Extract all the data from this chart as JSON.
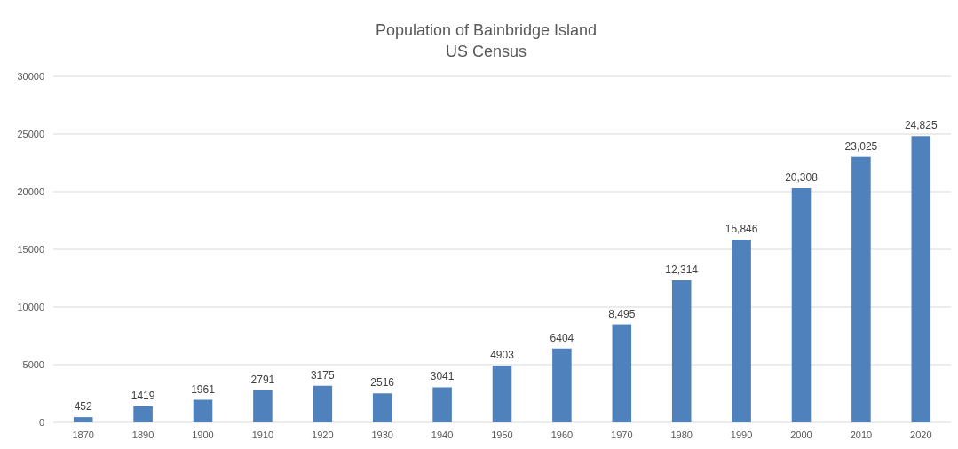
{
  "chart_data": {
    "type": "bar",
    "title": "Population of Bainbridge Island",
    "subtitle": "US Census",
    "categories": [
      "1870",
      "1890",
      "1900",
      "1910",
      "1920",
      "1930",
      "1940",
      "1950",
      "1960",
      "1970",
      "1980",
      "1990",
      "2000",
      "2010",
      "2020"
    ],
    "values": [
      452,
      1419,
      1961,
      2791,
      3175,
      2516,
      3041,
      4903,
      6404,
      8495,
      12314,
      15846,
      20308,
      23025,
      24825
    ],
    "value_labels": [
      "452",
      "1419",
      "1961",
      "2791",
      "3175",
      "2516",
      "3041",
      "4903",
      "6404",
      "8,495",
      "12,314",
      "15,846",
      "20,308",
      "23,025",
      "24,825"
    ],
    "color": "#4f81bd",
    "ylim": [
      0,
      30000
    ],
    "yticks": [
      0,
      5000,
      10000,
      15000,
      20000,
      25000,
      30000
    ],
    "grid": "y"
  }
}
